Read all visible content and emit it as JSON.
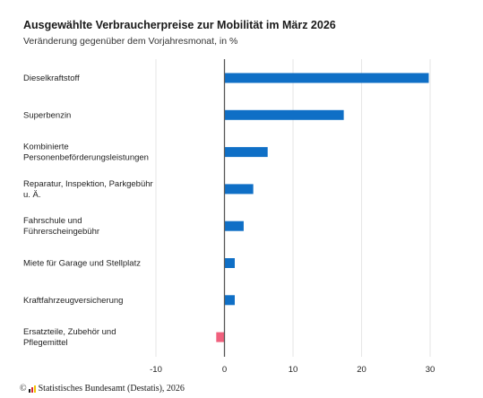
{
  "title": "Ausgewählte Verbraucherpreise zur Mobilität im März 2026",
  "subtitle": "Veränderung gegenüber dem Vorjahresmonat, in %",
  "source": {
    "copyright": "©",
    "text": "Statistisches Bundesamt (Destatis), 2026"
  },
  "colors": {
    "positive": "#0f6fc6",
    "negative": "#f0607d",
    "grid": "#e6e6e6",
    "zero_line": "#555555"
  },
  "chart_data": {
    "type": "bar",
    "orientation": "horizontal",
    "title": "Ausgewählte Verbraucherpreise zur Mobilität im März 2026",
    "subtitle": "Veränderung gegenüber dem Vorjahresmonat, in %",
    "xlabel": "",
    "ylabel": "",
    "xlim": [
      -10,
      30
    ],
    "xticks": [
      -10,
      0,
      10,
      20,
      30
    ],
    "xtick_labels": [
      "-10",
      "0",
      "10",
      "20",
      "30"
    ],
    "grid": true,
    "legend": "none",
    "categories": [
      [
        "Dieselkraftstoff"
      ],
      [
        "Superbenzin"
      ],
      [
        "Kombinierte",
        "Personenbeförderungsleistungen"
      ],
      [
        "Reparatur, Inspektion, Parkgebühr",
        "u. Ä."
      ],
      [
        "Fahrschule und",
        "Führerscheingebühr"
      ],
      [
        "Miete für Garage und Stellplatz"
      ],
      [
        "Kraftfahrzeugversicherung"
      ],
      [
        "Ersatzteile, Zubehör und",
        "Pflegemittel"
      ]
    ],
    "values": [
      29.8,
      17.4,
      6.3,
      4.2,
      2.8,
      1.5,
      1.5,
      -1.2
    ]
  }
}
